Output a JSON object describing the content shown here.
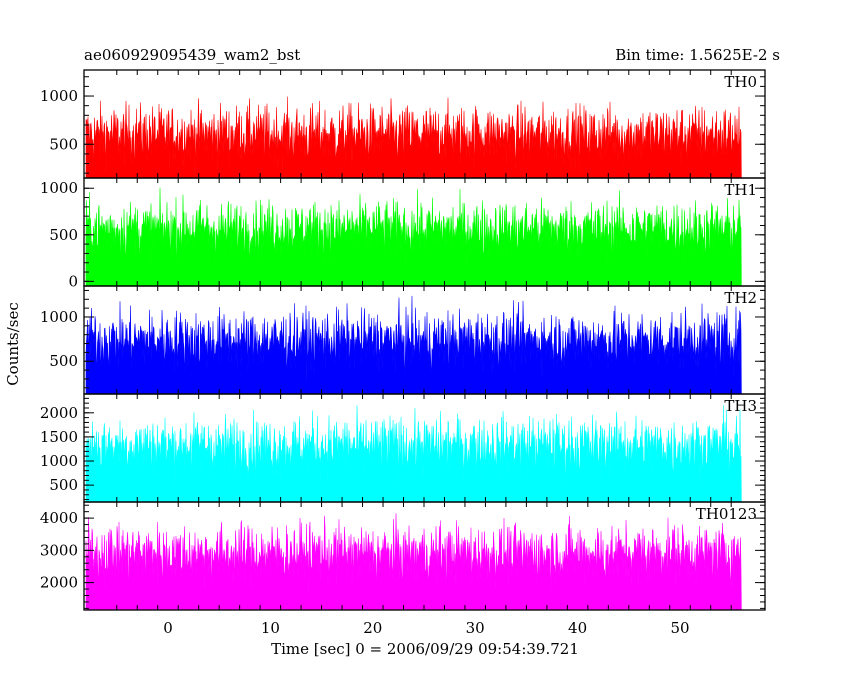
{
  "chart_data": {
    "type": "line",
    "title": "ae060929095439_wam2_bst",
    "bin_time": "Bin time: 1.5625E-2 s",
    "xlabel": "Time [sec] 0 = 2006/09/29 09:54:39.721",
    "ylabel": "Counts/sec",
    "xlim": [
      -8.2,
      58.3
    ],
    "x_data_range": [
      -8,
      56
    ],
    "x_ticks": [
      0,
      10,
      20,
      30,
      40,
      50
    ],
    "x_tick_labels": [
      "0",
      "10",
      "20",
      "30",
      "40",
      "50"
    ],
    "grid": false,
    "series": [
      {
        "name": "TH0",
        "color": "#ff0000",
        "ylim": [
          150,
          1270
        ],
        "ticks": [
          500,
          1000
        ],
        "tick_labels": [
          "500",
          "1000"
        ],
        "base": 150,
        "mean": 600,
        "spread": 330,
        "min": 170,
        "max": 1270
      },
      {
        "name": "TH1",
        "color": "#00ff00",
        "ylim": [
          -50,
          1110
        ],
        "ticks": [
          0,
          500,
          1000
        ],
        "tick_labels": [
          "0",
          "500",
          "1000"
        ],
        "base": -50,
        "mean": 560,
        "spread": 330,
        "min": 0,
        "max": 1110
      },
      {
        "name": "TH2",
        "color": "#0000ff",
        "ylim": [
          130,
          1350
        ],
        "ticks": [
          500,
          1000
        ],
        "tick_labels": [
          "500",
          "1000"
        ],
        "base": 130,
        "mean": 740,
        "spread": 360,
        "min": 150,
        "max": 1350
      },
      {
        "name": "TH3",
        "color": "#00ffff",
        "ylim": [
          150,
          2390
        ],
        "ticks": [
          500,
          1000,
          1500,
          2000
        ],
        "tick_labels": [
          "500",
          "1000",
          "1500",
          "2000"
        ],
        "base": 150,
        "mean": 1300,
        "spread": 680,
        "min": 200,
        "max": 2390
      },
      {
        "name": "TH0123",
        "color": "#ff00ff",
        "ylim": [
          1150,
          4500
        ],
        "ticks": [
          2000,
          3000,
          4000
        ],
        "tick_labels": [
          "2000",
          "3000",
          "4000"
        ],
        "base": 1150,
        "mean": 2900,
        "spread": 1000,
        "min": 1200,
        "max": 4500
      }
    ]
  }
}
